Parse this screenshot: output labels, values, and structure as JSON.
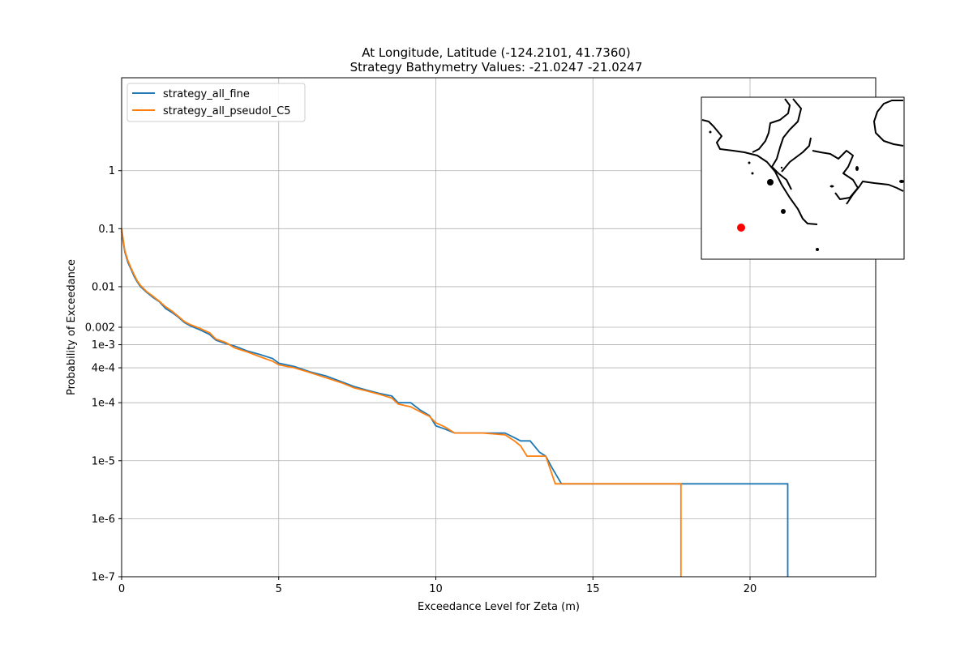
{
  "chart_data": {
    "type": "line",
    "title_lines": [
      "At Longitude, Latitude (-124.2101,  41.7360)",
      "Strategy Bathymetry Values:  -21.0247  -21.0247"
    ],
    "xlabel": "Exceedance Level for Zeta (m)",
    "ylabel": "Probability of Exceedance",
    "xlim": [
      0,
      24
    ],
    "ylim": [
      1e-07,
      40
    ],
    "yscale": "log",
    "grid": true,
    "legend_position": "top-left",
    "x_ticks": [
      {
        "value": 0,
        "label": "0"
      },
      {
        "value": 5,
        "label": "5"
      },
      {
        "value": 10,
        "label": "10"
      },
      {
        "value": 15,
        "label": "15"
      },
      {
        "value": 20,
        "label": "20"
      }
    ],
    "y_ticks": [
      {
        "value": 1,
        "label": "1"
      },
      {
        "value": 0.1,
        "label": "0.1"
      },
      {
        "value": 0.01,
        "label": "0.01"
      },
      {
        "value": 0.002,
        "label": "0.002"
      },
      {
        "value": 0.001,
        "label": "1e-3"
      },
      {
        "value": 0.0004,
        "label": "4e-4"
      },
      {
        "value": 0.0001,
        "label": "1e-4"
      },
      {
        "value": 1e-05,
        "label": "1e-5"
      },
      {
        "value": 1e-06,
        "label": "1e-6"
      },
      {
        "value": 1e-07,
        "label": "1e-7"
      }
    ],
    "series": [
      {
        "name": "strategy_all_fine",
        "color": "#1f77b4",
        "points": [
          [
            0,
            0.09
          ],
          [
            0.1,
            0.04
          ],
          [
            0.2,
            0.026
          ],
          [
            0.3,
            0.02
          ],
          [
            0.4,
            0.015
          ],
          [
            0.5,
            0.012
          ],
          [
            0.6,
            0.01
          ],
          [
            0.8,
            0.008
          ],
          [
            1.0,
            0.0065
          ],
          [
            1.2,
            0.0055
          ],
          [
            1.4,
            0.0042
          ],
          [
            1.6,
            0.0036
          ],
          [
            1.8,
            0.003
          ],
          [
            2.0,
            0.0024
          ],
          [
            2.2,
            0.0021
          ],
          [
            2.5,
            0.0018
          ],
          [
            2.8,
            0.0015
          ],
          [
            3.0,
            0.0012
          ],
          [
            3.3,
            0.00105
          ],
          [
            3.6,
            0.00095
          ],
          [
            4.0,
            0.00078
          ],
          [
            4.4,
            0.00068
          ],
          [
            4.8,
            0.00058
          ],
          [
            5.0,
            0.00048
          ],
          [
            5.5,
            0.00042
          ],
          [
            6.0,
            0.00034
          ],
          [
            6.5,
            0.00029
          ],
          [
            7.0,
            0.00023
          ],
          [
            7.4,
            0.00019
          ],
          [
            7.8,
            0.000165
          ],
          [
            8.2,
            0.000145
          ],
          [
            8.6,
            0.00013
          ],
          [
            8.8,
            0.0001
          ],
          [
            9.2,
            0.0001
          ],
          [
            9.5,
            7.5e-05
          ],
          [
            9.8,
            6e-05
          ],
          [
            10.0,
            4e-05
          ],
          [
            10.3,
            3.5e-05
          ],
          [
            10.6,
            3e-05
          ],
          [
            11.5,
            3e-05
          ],
          [
            12.2,
            3e-05
          ],
          [
            12.5,
            2.5e-05
          ],
          [
            12.7,
            2.2e-05
          ],
          [
            13.0,
            2.2e-05
          ],
          [
            13.3,
            1.4e-05
          ],
          [
            13.5,
            1.2e-05
          ],
          [
            13.7,
            7.5e-06
          ],
          [
            14.0,
            4e-06
          ],
          [
            21.2,
            4e-06
          ],
          [
            21.2,
            1e-07
          ]
        ]
      },
      {
        "name": "strategy_all_pseudoI_C5",
        "color": "#ff7f0e",
        "points": [
          [
            0,
            0.1
          ],
          [
            0.1,
            0.042
          ],
          [
            0.2,
            0.028
          ],
          [
            0.3,
            0.021
          ],
          [
            0.4,
            0.016
          ],
          [
            0.5,
            0.0125
          ],
          [
            0.6,
            0.0105
          ],
          [
            0.8,
            0.0082
          ],
          [
            1.0,
            0.0068
          ],
          [
            1.2,
            0.0056
          ],
          [
            1.4,
            0.0045
          ],
          [
            1.6,
            0.0038
          ],
          [
            1.8,
            0.0031
          ],
          [
            2.0,
            0.0025
          ],
          [
            2.2,
            0.0022
          ],
          [
            2.5,
            0.0019
          ],
          [
            2.8,
            0.0016
          ],
          [
            3.0,
            0.00125
          ],
          [
            3.3,
            0.0011
          ],
          [
            3.6,
            0.00088
          ],
          [
            4.0,
            0.00075
          ],
          [
            4.4,
            0.00062
          ],
          [
            4.8,
            0.00052
          ],
          [
            5.0,
            0.00045
          ],
          [
            5.5,
            0.0004
          ],
          [
            6.0,
            0.00033
          ],
          [
            6.5,
            0.00027
          ],
          [
            7.0,
            0.00022
          ],
          [
            7.4,
            0.00018
          ],
          [
            7.8,
            0.00016
          ],
          [
            8.2,
            0.00014
          ],
          [
            8.6,
            0.00012
          ],
          [
            8.8,
            9.5e-05
          ],
          [
            9.2,
            8.5e-05
          ],
          [
            9.5,
            7e-05
          ],
          [
            9.8,
            5.8e-05
          ],
          [
            10.0,
            4.5e-05
          ],
          [
            10.3,
            3.8e-05
          ],
          [
            10.6,
            3e-05
          ],
          [
            11.5,
            3e-05
          ],
          [
            12.2,
            2.8e-05
          ],
          [
            12.5,
            2.2e-05
          ],
          [
            12.7,
            1.8e-05
          ],
          [
            12.9,
            1.2e-05
          ],
          [
            13.2,
            1.2e-05
          ],
          [
            13.5,
            1.2e-05
          ],
          [
            13.8,
            4e-06
          ],
          [
            17.8,
            4e-06
          ],
          [
            17.8,
            1e-07
          ]
        ]
      }
    ],
    "inset_map": {
      "marker_color": "#ff0000",
      "coastline_color": "#000000"
    }
  }
}
